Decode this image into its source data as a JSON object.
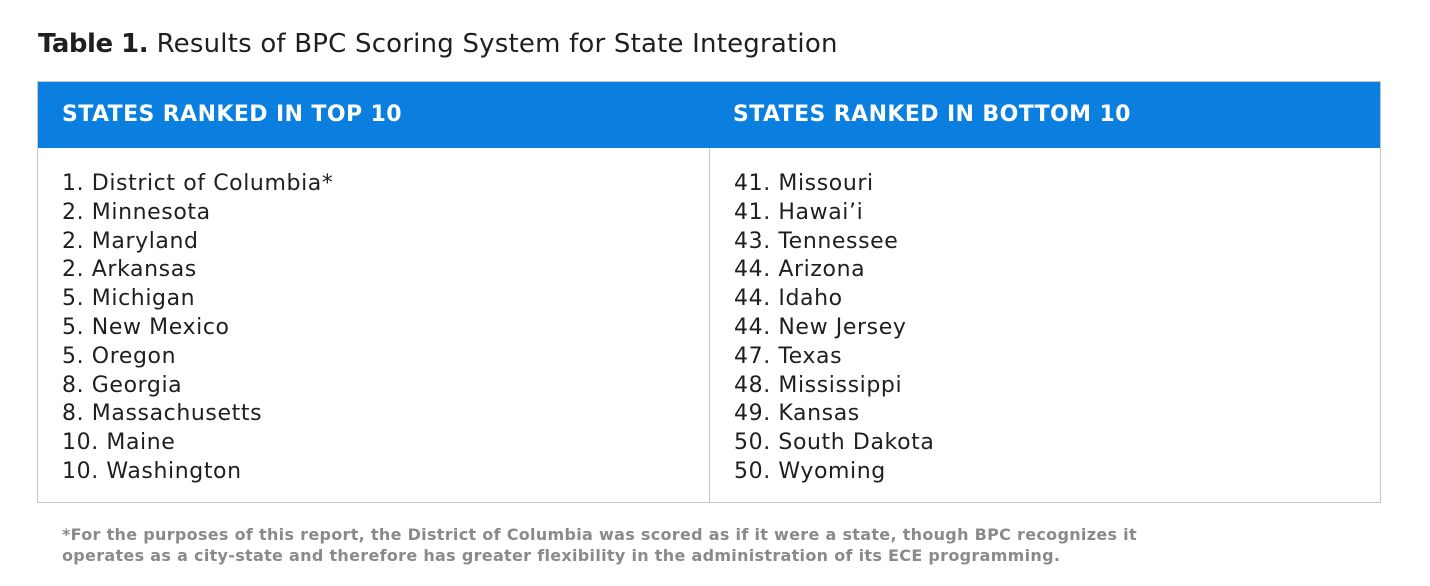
{
  "title": {
    "label": "Table 1.",
    "text": "Results of BPC Scoring System for State Integration"
  },
  "table": {
    "headers": [
      "STATES RANKED IN TOP 10",
      "STATES RANKED IN BOTTOM 10"
    ],
    "top10": [
      "1. District of Columbia*",
      "2. Minnesota",
      "2. Maryland",
      "2. Arkansas",
      "5. Michigan",
      "5. New Mexico",
      "5. Oregon",
      "8. Georgia",
      "8. Massachusetts",
      "10. Maine",
      "10. Washington"
    ],
    "bottom10": [
      "41. Missouri",
      "41. Hawai’i",
      "43. Tennessee",
      "44. Arizona",
      "44. Idaho",
      "44. New Jersey",
      "47. Texas",
      "48. Mississippi",
      "49. Kansas",
      "50. South Dakota",
      "50. Wyoming"
    ],
    "header_color": "#0a7fe0",
    "border_color": "#c6c6c6"
  },
  "footnote": {
    "line1": "*For the purposes of this report, the District of Columbia was scored as if it were a state, though BPC recognizes it",
    "line2": "operates as a city-state and therefore has greater flexibility in the administration of its ECE programming."
  }
}
